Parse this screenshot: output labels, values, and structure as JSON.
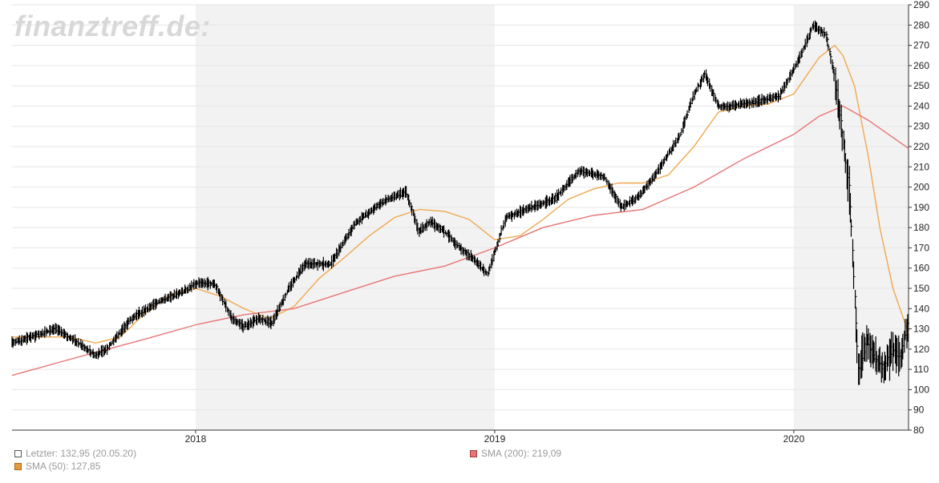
{
  "watermark": "finanztreff.de:",
  "colors": {
    "price": "#000000",
    "sma50": "#f0a850",
    "sma200": "#e87474",
    "shade": "#f2f2f2",
    "grid": "#e6e6e6",
    "axis": "#333333"
  },
  "legend": {
    "last": "Letzter: 132,95 (20.05.20)",
    "sma50": "SMA (50): 127,85",
    "sma200": "SMA (200): 219,09"
  },
  "chart_data": {
    "type": "line",
    "title": "",
    "xlabel": "",
    "ylabel": "",
    "ylim": [
      80,
      290
    ],
    "y_ticks": [
      80,
      90,
      100,
      110,
      120,
      130,
      140,
      150,
      160,
      170,
      180,
      190,
      200,
      210,
      220,
      230,
      240,
      250,
      260,
      270,
      280,
      290
    ],
    "x_range": [
      "2017-05-22",
      "2020-05-20"
    ],
    "x_tick_labels": [
      {
        "date": "2018-01-01",
        "label": "2018"
      },
      {
        "date": "2019-01-01",
        "label": "2019"
      },
      {
        "date": "2020-01-01",
        "label": "2020"
      }
    ],
    "shaded_years": [
      {
        "from": "2018-01-01",
        "to": "2019-01-01"
      },
      {
        "from": "2020-01-01",
        "to": "2020-05-20"
      }
    ],
    "grid": true,
    "series": [
      {
        "name": "Letzter",
        "style": "ohlc-bars",
        "x": [
          "2017-05-22",
          "2017-06-15",
          "2017-07-15",
          "2017-08-15",
          "2017-09-01",
          "2017-09-15",
          "2017-10-15",
          "2017-11-15",
          "2017-12-15",
          "2018-01-05",
          "2018-01-25",
          "2018-02-15",
          "2018-03-01",
          "2018-03-20",
          "2018-04-05",
          "2018-04-25",
          "2018-05-15",
          "2018-06-15",
          "2018-07-15",
          "2018-08-15",
          "2018-09-15",
          "2018-10-01",
          "2018-10-15",
          "2018-11-01",
          "2018-11-20",
          "2018-12-05",
          "2018-12-24",
          "2019-01-15",
          "2019-02-15",
          "2019-03-15",
          "2019-04-15",
          "2019-05-15",
          "2019-06-05",
          "2019-06-25",
          "2019-07-15",
          "2019-08-15",
          "2019-09-01",
          "2019-09-15",
          "2019-10-01",
          "2019-10-15",
          "2019-11-15",
          "2019-12-15",
          "2020-01-10",
          "2020-01-25",
          "2020-02-10",
          "2020-02-20",
          "2020-03-01",
          "2020-03-10",
          "2020-03-16",
          "2020-03-20",
          "2020-03-31",
          "2020-04-10",
          "2020-04-20",
          "2020-05-01",
          "2020-05-10",
          "2020-05-20"
        ],
        "y": [
          123,
          126,
          130,
          122,
          117,
          120,
          135,
          143,
          148,
          153,
          152,
          135,
          131,
          135,
          133,
          150,
          162,
          162,
          182,
          192,
          198,
          178,
          183,
          178,
          170,
          165,
          157,
          185,
          190,
          194,
          208,
          205,
          190,
          195,
          205,
          225,
          245,
          256,
          240,
          240,
          242,
          245,
          265,
          280,
          275,
          255,
          225,
          195,
          145,
          110,
          125,
          115,
          110,
          120,
          115,
          132.95
        ]
      },
      {
        "name": "SMA (50)",
        "style": "line",
        "x": [
          "2017-05-22",
          "2017-07-01",
          "2017-08-01",
          "2017-09-01",
          "2017-10-01",
          "2017-11-01",
          "2017-12-01",
          "2018-01-01",
          "2018-02-01",
          "2018-03-01",
          "2018-04-01",
          "2018-05-01",
          "2018-06-01",
          "2018-07-01",
          "2018-08-01",
          "2018-09-01",
          "2018-10-01",
          "2018-11-01",
          "2018-12-01",
          "2019-01-01",
          "2019-02-01",
          "2019-03-01",
          "2019-04-01",
          "2019-05-01",
          "2019-06-01",
          "2019-07-01",
          "2019-08-01",
          "2019-09-01",
          "2019-10-01",
          "2019-11-01",
          "2019-12-01",
          "2020-01-01",
          "2020-02-01",
          "2020-02-20",
          "2020-03-01",
          "2020-03-15",
          "2020-04-01",
          "2020-04-15",
          "2020-05-01",
          "2020-05-20"
        ],
        "y": [
          126,
          126,
          126,
          123,
          126,
          138,
          147,
          150,
          146,
          140,
          135,
          141,
          155,
          165,
          176,
          185,
          189,
          188,
          184,
          174,
          176,
          184,
          194,
          199,
          202,
          202,
          206,
          220,
          237,
          240,
          241,
          246,
          264,
          270,
          265,
          250,
          215,
          180,
          150,
          127.85
        ]
      },
      {
        "name": "SMA (200)",
        "style": "line",
        "x": [
          "2017-05-22",
          "2017-08-01",
          "2017-11-01",
          "2018-01-01",
          "2018-03-01",
          "2018-05-01",
          "2018-07-01",
          "2018-09-01",
          "2018-11-01",
          "2019-01-01",
          "2019-03-01",
          "2019-05-01",
          "2019-07-01",
          "2019-09-01",
          "2019-11-01",
          "2020-01-01",
          "2020-02-01",
          "2020-03-01",
          "2020-04-01",
          "2020-05-20"
        ],
        "y": [
          107,
          115,
          125,
          132,
          137,
          140,
          148,
          156,
          161,
          170,
          180,
          186,
          189,
          200,
          214,
          226,
          235,
          240,
          233,
          219.09
        ]
      }
    ]
  }
}
